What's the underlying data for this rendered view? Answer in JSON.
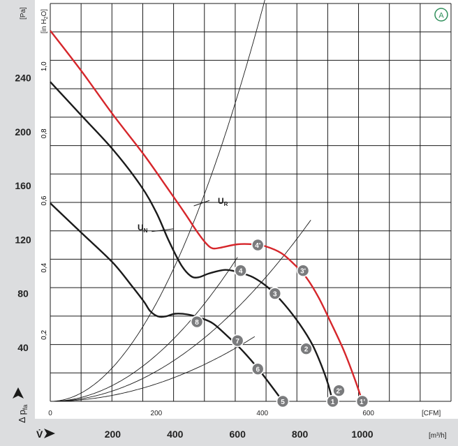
{
  "chart_data": {
    "type": "line",
    "badge": "A",
    "axes": {
      "left_unit": "[Pa]",
      "left_ticks": [
        40,
        80,
        120,
        160,
        200,
        240
      ],
      "left_symbol": "Δ p",
      "left_symbol_sub": "fa",
      "inner_left_unit": "[in H",
      "inner_left_unit_sub": "2",
      "inner_left_unit_end": "O]",
      "inner_left_ticks": [
        "0,2",
        "0,4",
        "0,6",
        "0,8",
        "1,0"
      ],
      "cfm_ticks": [
        "0",
        "200",
        "400",
        "600"
      ],
      "cfm_unit": "[CFM]",
      "m3h_symbol": "V̇",
      "m3h_ticks": [
        "200",
        "400",
        "600",
        "800",
        "1000"
      ],
      "m3h_unit": "[m³/h]"
    },
    "series": [
      {
        "name": "U",
        "name_sub": "R",
        "color": "#d6262b",
        "points": [
          [
            0,
            275
          ],
          [
            100,
            245
          ],
          [
            200,
            213
          ],
          [
            300,
            183
          ],
          [
            370,
            160
          ],
          [
            430,
            140
          ],
          [
            470,
            126
          ],
          [
            500,
            117
          ],
          [
            520,
            113.5
          ],
          [
            545,
            114
          ],
          [
            600,
            116.5
          ],
          [
            650,
            116.5
          ],
          [
            690,
            115
          ],
          [
            740,
            110
          ],
          [
            780,
            102
          ],
          [
            820,
            92
          ],
          [
            860,
            77
          ],
          [
            900,
            58
          ],
          [
            940,
            38
          ],
          [
            975,
            17
          ],
          [
            1000,
            0
          ]
        ]
      },
      {
        "name": "U",
        "name_sub": "N",
        "color": "#1a1a1a",
        "points": [
          [
            0,
            237
          ],
          [
            100,
            212
          ],
          [
            200,
            187
          ],
          [
            290,
            160
          ],
          [
            340,
            140
          ],
          [
            380,
            119
          ],
          [
            420,
            101
          ],
          [
            450,
            93
          ],
          [
            475,
            92
          ],
          [
            510,
            95
          ],
          [
            560,
            97.5
          ],
          [
            600,
            96
          ],
          [
            650,
            92
          ],
          [
            700,
            84
          ],
          [
            750,
            72
          ],
          [
            800,
            57
          ],
          [
            840,
            42
          ],
          [
            870,
            26
          ],
          [
            890,
            13
          ],
          [
            905,
            0
          ]
        ]
      },
      {
        "name": "",
        "color": "#1a1a1a",
        "points": [
          [
            0,
            147
          ],
          [
            100,
            125
          ],
          [
            200,
            103
          ],
          [
            260,
            86
          ],
          [
            300,
            74
          ],
          [
            320,
            67
          ],
          [
            345,
            63
          ],
          [
            370,
            63
          ],
          [
            400,
            65
          ],
          [
            440,
            64.5
          ],
          [
            480,
            62
          ],
          [
            520,
            58
          ],
          [
            560,
            50
          ],
          [
            610,
            39
          ],
          [
            660,
            26
          ],
          [
            700,
            14
          ],
          [
            745,
            0
          ]
        ]
      }
    ],
    "operating_points": [
      {
        "label": "1",
        "x": 905,
        "y": 0
      },
      {
        "label": "2",
        "x": 820,
        "y": 39
      },
      {
        "label": "3",
        "x": 720,
        "y": 80
      },
      {
        "label": "4",
        "x": 610,
        "y": 97
      },
      {
        "label": "5",
        "x": 745,
        "y": 0
      },
      {
        "label": "6",
        "x": 665,
        "y": 24
      },
      {
        "label": "7",
        "x": 600,
        "y": 45
      },
      {
        "label": "8",
        "x": 470,
        "y": 59
      },
      {
        "label": "1'",
        "x": 1000,
        "y": 0
      },
      {
        "label": "2'",
        "x": 925,
        "y": 8
      },
      {
        "label": "3'",
        "x": 810,
        "y": 97
      },
      {
        "label": "4'",
        "x": 665,
        "y": 116
      }
    ],
    "system_curves": [
      {
        "k": 0.00063,
        "x_max": 955
      },
      {
        "k": 0.000193,
        "x_max": 835
      },
      {
        "k": 0.000112,
        "x_max": 655
      },
      {
        "k": 0.000297,
        "x_max": 600
      }
    ],
    "xlim": [
      0,
      1050
    ],
    "ylim": [
      0,
      282
    ],
    "grid": true
  }
}
